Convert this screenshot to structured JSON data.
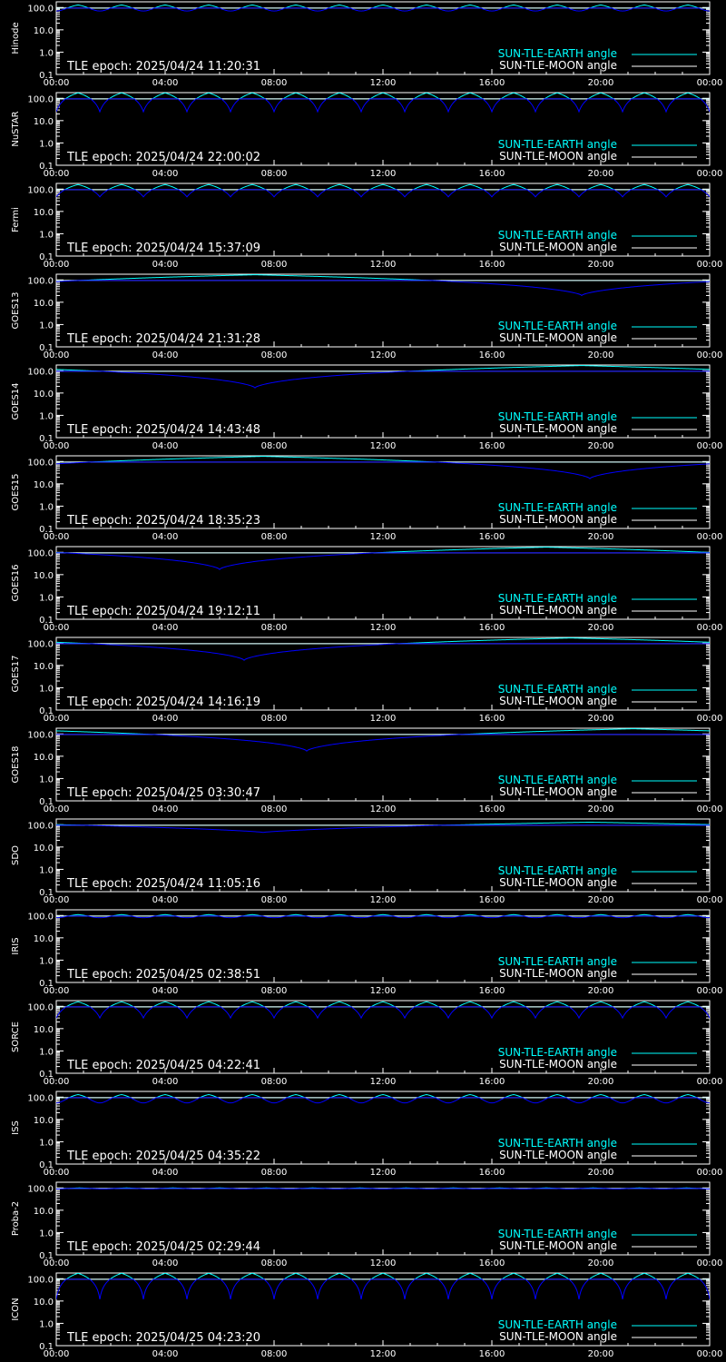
{
  "colors": {
    "background": "#000000",
    "axes": "#ffffff",
    "earth_angle": "#00ffff",
    "earth_dip": "#0000ff",
    "moon_angle": "#ffffff"
  },
  "common": {
    "x_tick_labels": [
      "00:00",
      "04:00",
      "08:00",
      "12:00",
      "16:00",
      "20:00",
      "00:00"
    ],
    "y_tick_labels": [
      "0.1",
      "1.0",
      "10.0",
      "100.0"
    ],
    "legend": [
      "SUN-TLE-EARTH angle",
      "SUN-TLE-MOON angle"
    ],
    "epoch_prefix": "TLE epoch: "
  },
  "chart_data": [
    {
      "type": "line",
      "satellite": "Hinode",
      "tle_epoch": "2025/04/24 11:20:31",
      "pattern": "orbital",
      "orbits": 15,
      "min_deg": 70,
      "max_deg": 130,
      "dip_shape": "round",
      "moon_deg": 95,
      "xlim": [
        "00:00",
        "24:00"
      ],
      "ylim": [
        0.1,
        180
      ],
      "y_scale": "log",
      "series": [
        {
          "name": "SUN-TLE-EARTH angle"
        },
        {
          "name": "SUN-TLE-MOON angle"
        }
      ]
    },
    {
      "type": "line",
      "satellite": "NuSTAR",
      "tle_epoch": "2025/04/24 22:00:02",
      "pattern": "orbital",
      "orbits": 15,
      "min_deg": 25,
      "max_deg": 175,
      "dip_shape": "sharp",
      "moon_deg": 95,
      "xlim": [
        "00:00",
        "24:00"
      ],
      "ylim": [
        0.1,
        180
      ],
      "y_scale": "log",
      "series": [
        {
          "name": "SUN-TLE-EARTH angle"
        },
        {
          "name": "SUN-TLE-MOON angle"
        }
      ]
    },
    {
      "type": "line",
      "satellite": "Fermi",
      "tle_epoch": "2025/04/24 15:37:09",
      "pattern": "orbital",
      "orbits": 15,
      "min_deg": 45,
      "max_deg": 160,
      "dip_shape": "sharp",
      "moon_deg": 95,
      "xlim": [
        "00:00",
        "24:00"
      ],
      "ylim": [
        0.1,
        180
      ],
      "y_scale": "log",
      "series": [
        {
          "name": "SUN-TLE-EARTH angle"
        },
        {
          "name": "SUN-TLE-MOON angle"
        }
      ]
    },
    {
      "type": "line",
      "satellite": "GOES13",
      "tle_epoch": "2025/04/24 21:31:28",
      "pattern": "geo",
      "min_time_h": 19.3,
      "min_deg": 20,
      "max_deg": 170,
      "moon_deg": 95,
      "xlim": [
        "00:00",
        "24:00"
      ],
      "ylim": [
        0.1,
        180
      ],
      "y_scale": "log",
      "series": [
        {
          "name": "SUN-TLE-EARTH angle"
        },
        {
          "name": "SUN-TLE-MOON angle"
        }
      ]
    },
    {
      "type": "line",
      "satellite": "GOES14",
      "tle_epoch": "2025/04/24 14:43:48",
      "pattern": "geo",
      "min_time_h": 7.3,
      "min_deg": 17,
      "max_deg": 170,
      "moon_deg": 95,
      "xlim": [
        "00:00",
        "24:00"
      ],
      "ylim": [
        0.1,
        180
      ],
      "y_scale": "log",
      "series": [
        {
          "name": "SUN-TLE-EARTH angle"
        },
        {
          "name": "SUN-TLE-MOON angle"
        }
      ]
    },
    {
      "type": "line",
      "satellite": "GOES15",
      "tle_epoch": "2025/04/24 18:35:23",
      "pattern": "geo",
      "min_time_h": 19.6,
      "min_deg": 17,
      "max_deg": 170,
      "moon_deg": 95,
      "xlim": [
        "00:00",
        "24:00"
      ],
      "ylim": [
        0.1,
        180
      ],
      "y_scale": "log",
      "series": [
        {
          "name": "SUN-TLE-EARTH angle"
        },
        {
          "name": "SUN-TLE-MOON angle"
        }
      ]
    },
    {
      "type": "line",
      "satellite": "GOES16",
      "tle_epoch": "2025/04/24 19:12:11",
      "pattern": "geo",
      "min_time_h": 6.0,
      "min_deg": 17,
      "max_deg": 170,
      "moon_deg": 95,
      "xlim": [
        "00:00",
        "24:00"
      ],
      "ylim": [
        0.1,
        180
      ],
      "y_scale": "log",
      "series": [
        {
          "name": "SUN-TLE-EARTH angle"
        },
        {
          "name": "SUN-TLE-MOON angle"
        }
      ]
    },
    {
      "type": "line",
      "satellite": "GOES17",
      "tle_epoch": "2025/04/24 14:16:19",
      "pattern": "geo",
      "min_time_h": 6.9,
      "min_deg": 17,
      "max_deg": 170,
      "moon_deg": 95,
      "xlim": [
        "00:00",
        "24:00"
      ],
      "ylim": [
        0.1,
        180
      ],
      "y_scale": "log",
      "series": [
        {
          "name": "SUN-TLE-EARTH angle"
        },
        {
          "name": "SUN-TLE-MOON angle"
        }
      ]
    },
    {
      "type": "line",
      "satellite": "GOES18",
      "tle_epoch": "2025/04/25 03:30:47",
      "pattern": "geo",
      "min_time_h": 9.2,
      "min_deg": 17,
      "max_deg": 170,
      "moon_deg": 95,
      "xlim": [
        "00:00",
        "24:00"
      ],
      "ylim": [
        0.1,
        180
      ],
      "y_scale": "log",
      "series": [
        {
          "name": "SUN-TLE-EARTH angle"
        },
        {
          "name": "SUN-TLE-MOON angle"
        }
      ]
    },
    {
      "type": "line",
      "satellite": "SDO",
      "tle_epoch": "2025/04/24 11:05:16",
      "pattern": "geo",
      "min_time_h": 7.6,
      "min_deg": 45,
      "max_deg": 130,
      "moon_deg": 95,
      "xlim": [
        "00:00",
        "24:00"
      ],
      "ylim": [
        0.1,
        180
      ],
      "y_scale": "log",
      "series": [
        {
          "name": "SUN-TLE-EARTH angle"
        },
        {
          "name": "SUN-TLE-MOON angle"
        }
      ]
    },
    {
      "type": "line",
      "satellite": "IRIS",
      "tle_epoch": "2025/04/25 02:38:51",
      "pattern": "orbital",
      "orbits": 15,
      "min_deg": 80,
      "max_deg": 110,
      "dip_shape": "round",
      "moon_deg": 95,
      "xlim": [
        "00:00",
        "24:00"
      ],
      "ylim": [
        0.1,
        180
      ],
      "y_scale": "log",
      "series": [
        {
          "name": "SUN-TLE-EARTH angle"
        },
        {
          "name": "SUN-TLE-MOON angle"
        }
      ]
    },
    {
      "type": "line",
      "satellite": "SORCE",
      "tle_epoch": "2025/04/25 04:22:41",
      "pattern": "orbital",
      "orbits": 15,
      "min_deg": 30,
      "max_deg": 160,
      "dip_shape": "sharp",
      "moon_deg": 95,
      "xlim": [
        "00:00",
        "24:00"
      ],
      "ylim": [
        0.1,
        180
      ],
      "y_scale": "log",
      "series": [
        {
          "name": "SUN-TLE-EARTH angle"
        },
        {
          "name": "SUN-TLE-MOON angle"
        }
      ]
    },
    {
      "type": "line",
      "satellite": "ISS",
      "tle_epoch": "2025/04/25 04:35:22",
      "pattern": "orbital",
      "orbits": 15,
      "min_deg": 55,
      "max_deg": 130,
      "dip_shape": "round",
      "moon_deg": 95,
      "xlim": [
        "00:00",
        "24:00"
      ],
      "ylim": [
        0.1,
        180
      ],
      "y_scale": "log",
      "series": [
        {
          "name": "SUN-TLE-EARTH angle"
        },
        {
          "name": "SUN-TLE-MOON angle"
        }
      ]
    },
    {
      "type": "line",
      "satellite": "Proba-2",
      "tle_epoch": "2025/04/25 02:29:44",
      "pattern": "orbital",
      "orbits": 14,
      "min_deg": 90,
      "max_deg": 100,
      "dip_shape": "round",
      "moon_deg": 95,
      "xlim": [
        "00:00",
        "24:00"
      ],
      "ylim": [
        0.1,
        180
      ],
      "y_scale": "log",
      "series": [
        {
          "name": "SUN-TLE-EARTH angle"
        },
        {
          "name": "SUN-TLE-MOON angle"
        }
      ]
    },
    {
      "type": "line",
      "satellite": "ICON",
      "tle_epoch": "2025/04/25 04:23:20",
      "pattern": "orbital",
      "orbits": 15,
      "min_deg": 12,
      "max_deg": 175,
      "dip_shape": "sharp",
      "moon_deg": 95,
      "xlim": [
        "00:00",
        "24:00"
      ],
      "ylim": [
        0.1,
        180
      ],
      "y_scale": "log",
      "series": [
        {
          "name": "SUN-TLE-EARTH angle"
        },
        {
          "name": "SUN-TLE-MOON angle"
        }
      ]
    }
  ]
}
